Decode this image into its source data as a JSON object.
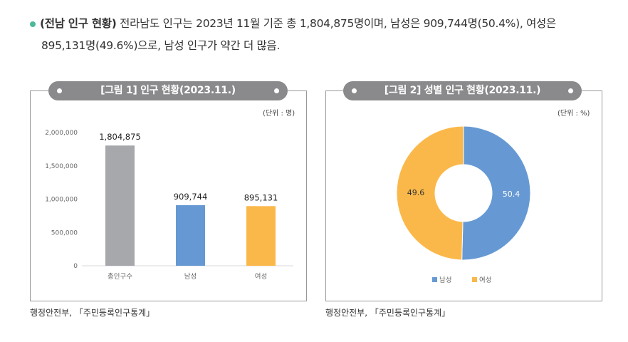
{
  "intro": {
    "heading": "(전남 인구 현황)",
    "line1": "전라남도 인구는 2023년 11월 기준 총 1,804,875명이며, 남성은 909,744명(50.4%), 여성은",
    "line2": "895,131명(49.6%)으로, 남성 인구가 약간 더 많음."
  },
  "figures": [
    {
      "title": "[그림 1] 인구 현황(2023.11.)",
      "unit": "(단위 : 명)",
      "source": "행정안전부, 「주민등록인구통계」"
    },
    {
      "title": "[그림 2] 성별 인구 현황(2023.11.)",
      "unit": "(단위 : %)",
      "source": "행정안전부, 「주민등록인구통계」"
    }
  ],
  "chart_data": [
    {
      "type": "bar",
      "categories": [
        "총인구수",
        "남성",
        "여성"
      ],
      "values": [
        1804875,
        909744,
        895131
      ],
      "value_labels": [
        "1,804,875",
        "909,744",
        "895,131"
      ],
      "colors": [
        "#a7a8ab",
        "#6699d3",
        "#fbb84a"
      ],
      "ylim": [
        0,
        2000000
      ],
      "yticks": [
        0,
        500000,
        1000000,
        1500000,
        2000000
      ],
      "ytick_labels": [
        "0",
        "500,000",
        "1,000,000",
        "1,500,000",
        "2,000,000"
      ]
    },
    {
      "type": "pie",
      "labels": [
        "남성",
        "여성"
      ],
      "values": [
        50.4,
        49.6
      ],
      "value_labels": [
        "50.4",
        "49.6"
      ],
      "colors": [
        "#6699d3",
        "#fbb84a"
      ],
      "legend": "bottom"
    }
  ]
}
